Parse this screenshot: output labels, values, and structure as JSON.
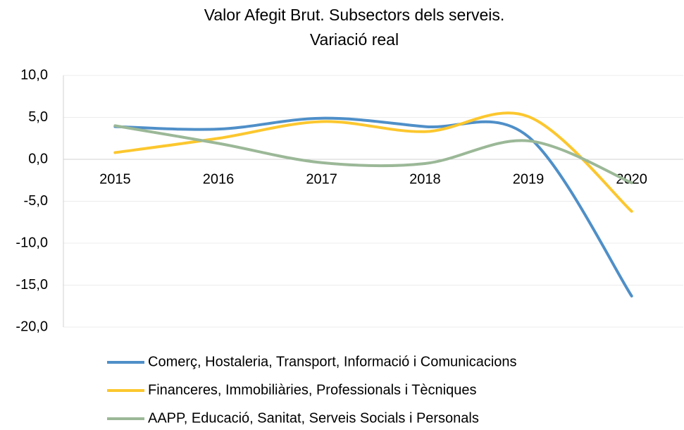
{
  "chart_data": {
    "type": "line",
    "title": [
      "Valor Afegit Brut. Subsectors dels serveis.",
      "Variació real"
    ],
    "categories": [
      "2015",
      "2016",
      "2017",
      "2018",
      "2019",
      "2020"
    ],
    "series": [
      {
        "name": "Comerç, Hostaleria, Transport, Informació i Comunicacions",
        "color": "#4f8fc8",
        "values": [
          3.9,
          3.6,
          4.9,
          3.9,
          2.7,
          -16.3
        ]
      },
      {
        "name": "Financeres, Immobiliàries, Professionals i Tècniques",
        "color": "#fcc72e",
        "values": [
          0.8,
          2.5,
          4.5,
          3.3,
          5.1,
          -6.2
        ]
      },
      {
        "name": "AAPP, Educació, Sanitat, Serveis Socials i Personals",
        "color": "#9bb897",
        "values": [
          4.0,
          1.9,
          -0.4,
          -0.5,
          2.2,
          -2.8
        ]
      }
    ],
    "ylim": [
      -20,
      10
    ],
    "yticks": [
      {
        "value": -20,
        "label": "-20,0"
      },
      {
        "value": -15,
        "label": "-15,0"
      },
      {
        "value": -10,
        "label": "-10,0"
      },
      {
        "value": -5,
        "label": "-5,0"
      },
      {
        "value": 0,
        "label": "0,0"
      },
      {
        "value": 5,
        "label": "5,0"
      },
      {
        "value": 10,
        "label": "10,0"
      }
    ],
    "grid": true,
    "smooth": true,
    "legend": "bottom"
  }
}
